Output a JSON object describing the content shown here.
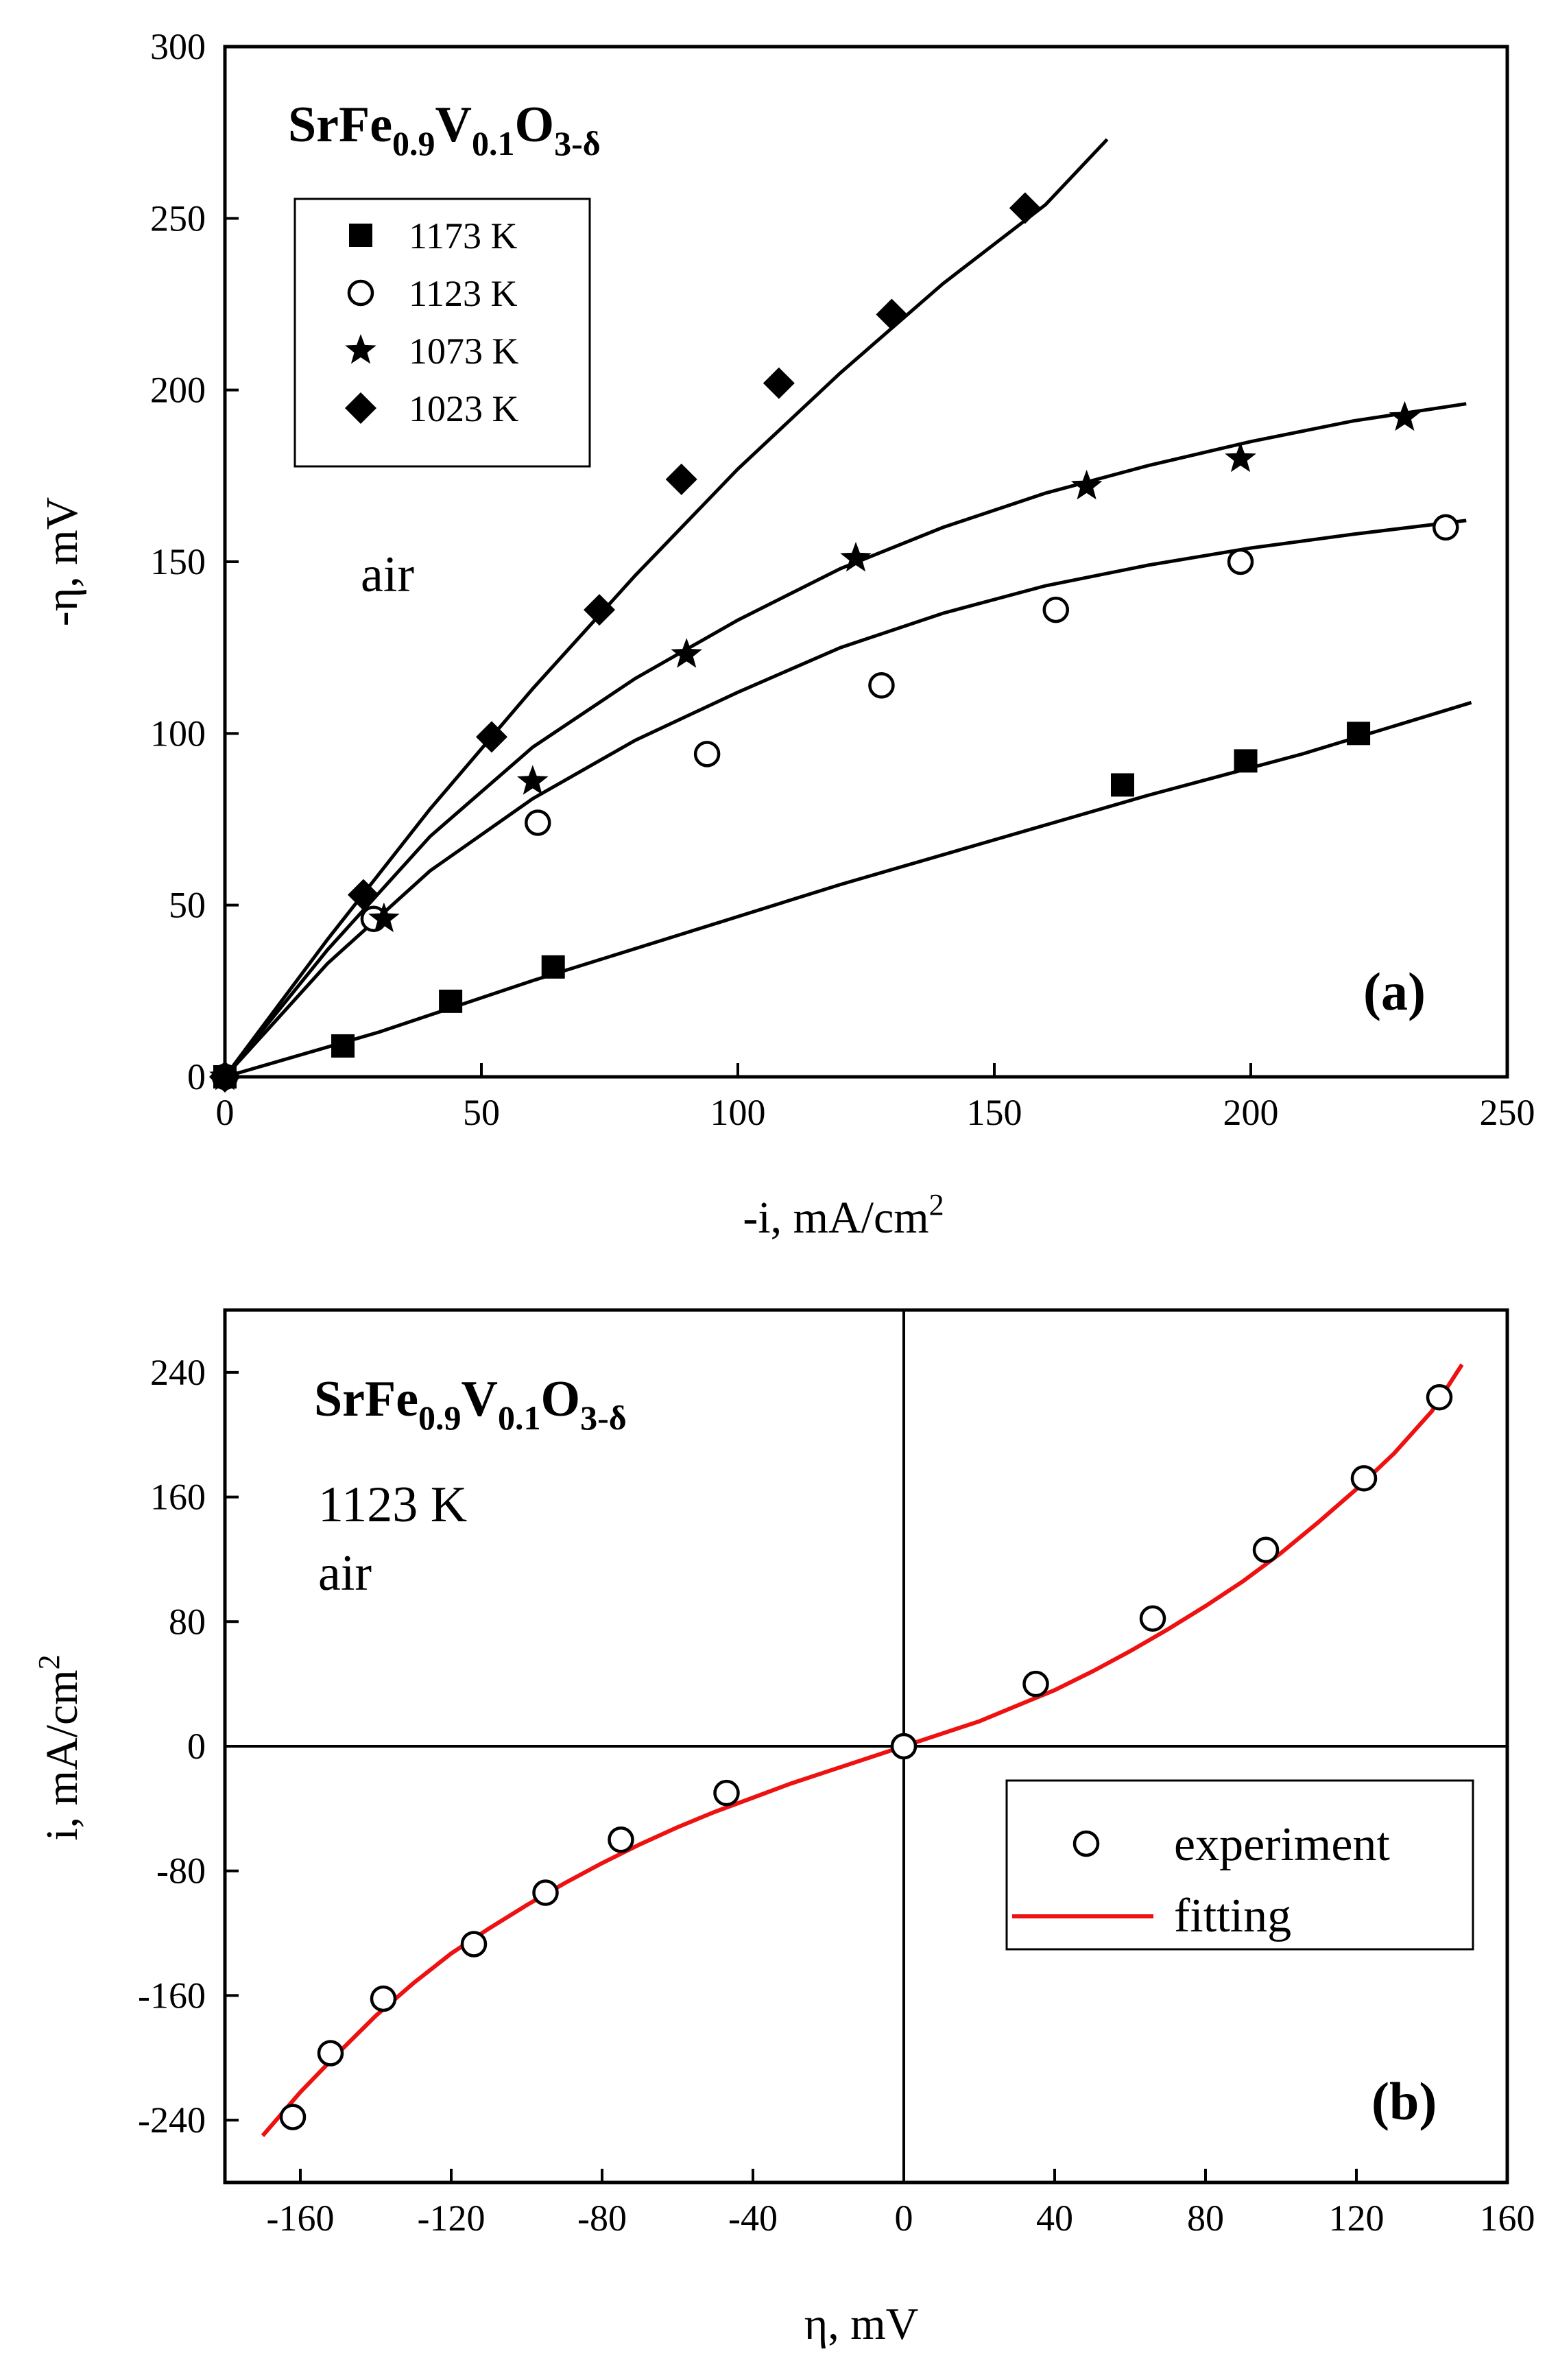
{
  "chart_data": [
    {
      "panel": "(a)",
      "type": "scatter",
      "xlabel": "-i, mA/cm",
      "xlabel_sup": "2",
      "ylabel": "-η, mV",
      "xlim": [
        0,
        250
      ],
      "ylim": [
        0,
        300
      ],
      "xticks": [
        0,
        50,
        100,
        150,
        200,
        250
      ],
      "yticks": [
        0,
        50,
        100,
        150,
        200,
        250,
        300
      ],
      "compound": {
        "base1": "SrFe",
        "sub1": "0.9",
        "base2": "V",
        "sub2": "0.1",
        "base3": "O",
        "sub3": "3-δ"
      },
      "annotation": "air",
      "legend": [
        "1173 K",
        "1123 K",
        "1073 K",
        "1023 K"
      ],
      "series": [
        {
          "name": "1173 K",
          "marker": "square",
          "points": [
            [
              0,
              0
            ],
            [
              23,
              9
            ],
            [
              44,
              22
            ],
            [
              64,
              32
            ],
            [
              175,
              85
            ],
            [
              199,
              92
            ],
            [
              221,
              100
            ]
          ],
          "fit": [
            [
              0,
              0
            ],
            [
              30,
              13
            ],
            [
              60,
              28
            ],
            [
              90,
              42
            ],
            [
              120,
              56
            ],
            [
              150,
              69
            ],
            [
              180,
              82
            ],
            [
              210,
              94
            ],
            [
              243,
              109
            ]
          ]
        },
        {
          "name": "1123 K",
          "marker": "circle",
          "points": [
            [
              0,
              0
            ],
            [
              29,
              46
            ],
            [
              61,
              74
            ],
            [
              94,
              94
            ],
            [
              128,
              114
            ],
            [
              162,
              136
            ],
            [
              198,
              150
            ],
            [
              238,
              160
            ]
          ],
          "fit": [
            [
              0,
              0
            ],
            [
              20,
              33
            ],
            [
              40,
              60
            ],
            [
              60,
              81
            ],
            [
              80,
              98
            ],
            [
              100,
              112
            ],
            [
              120,
              125
            ],
            [
              140,
              135
            ],
            [
              160,
              143
            ],
            [
              180,
              149
            ],
            [
              200,
              154
            ],
            [
              220,
              158
            ],
            [
              242,
              162
            ]
          ]
        },
        {
          "name": "1073 K",
          "marker": "star",
          "points": [
            [
              0,
              0
            ],
            [
              31,
              46
            ],
            [
              60,
              86
            ],
            [
              90,
              123
            ],
            [
              123,
              151
            ],
            [
              168,
              172
            ],
            [
              198,
              180
            ],
            [
              230,
              192
            ]
          ],
          "fit": [
            [
              0,
              0
            ],
            [
              20,
              37
            ],
            [
              40,
              70
            ],
            [
              60,
              96
            ],
            [
              80,
              116
            ],
            [
              100,
              133
            ],
            [
              120,
              148
            ],
            [
              140,
              160
            ],
            [
              160,
              170
            ],
            [
              180,
              178
            ],
            [
              200,
              185
            ],
            [
              220,
              191
            ],
            [
              242,
              196
            ]
          ]
        },
        {
          "name": "1023 K",
          "marker": "diamond",
          "points": [
            [
              0,
              0
            ],
            [
              27,
              53
            ],
            [
              52,
              99
            ],
            [
              73,
              136
            ],
            [
              89,
              174
            ],
            [
              108,
              202
            ],
            [
              130,
              222
            ],
            [
              156,
              253
            ]
          ],
          "fit": [
            [
              0,
              0
            ],
            [
              20,
              40
            ],
            [
              40,
              78
            ],
            [
              60,
              113
            ],
            [
              80,
              146
            ],
            [
              100,
              177
            ],
            [
              120,
              205
            ],
            [
              140,
              231
            ],
            [
              160,
              254
            ],
            [
              172,
              273
            ]
          ]
        }
      ]
    },
    {
      "panel": "(b)",
      "type": "scatter",
      "xlabel": "η, mV",
      "ylabel": "i, mA/cm",
      "ylabel_sup": "2",
      "xlim": [
        -180,
        160
      ],
      "ylim": [
        -280,
        280
      ],
      "xticks": [
        -160,
        -120,
        -80,
        -40,
        0,
        40,
        80,
        120,
        160
      ],
      "yticks": [
        -240,
        -160,
        -80,
        0,
        80,
        160,
        240
      ],
      "compound": {
        "base1": "SrFe",
        "sub1": "0.9",
        "base2": "V",
        "sub2": "0.1",
        "base3": "O",
        "sub3": "3-δ"
      },
      "annotation_lines": [
        "1123 K",
        "air"
      ],
      "legend": [
        "experiment",
        "fitting"
      ],
      "series": [
        {
          "name": "experiment",
          "marker": "circle",
          "points": [
            [
              -162,
              -238
            ],
            [
              -152,
              -197
            ],
            [
              -138,
              -162
            ],
            [
              -114,
              -127
            ],
            [
              -95,
              -94
            ],
            [
              -75,
              -60
            ],
            [
              -47,
              -30
            ],
            [
              0,
              0
            ],
            [
              35,
              40
            ],
            [
              66,
              82
            ],
            [
              96,
              126
            ],
            [
              122,
              172
            ],
            [
              142,
              224
            ]
          ]
        },
        {
          "name": "fitting",
          "color": "#ee1111",
          "line": [
            [
              -170,
              -250
            ],
            [
              -160,
              -222
            ],
            [
              -150,
              -197
            ],
            [
              -140,
              -173
            ],
            [
              -130,
              -152
            ],
            [
              -120,
              -133
            ],
            [
              -110,
              -117
            ],
            [
              -100,
              -102
            ],
            [
              -90,
              -88
            ],
            [
              -80,
              -75
            ],
            [
              -70,
              -63
            ],
            [
              -60,
              -52
            ],
            [
              -50,
              -42
            ],
            [
              -40,
              -33
            ],
            [
              -30,
              -24
            ],
            [
              -20,
              -16
            ],
            [
              -10,
              -8
            ],
            [
              0,
              0
            ],
            [
              10,
              8
            ],
            [
              20,
              16
            ],
            [
              30,
              26
            ],
            [
              40,
              36
            ],
            [
              50,
              48
            ],
            [
              60,
              61
            ],
            [
              70,
              75
            ],
            [
              80,
              90
            ],
            [
              90,
              106
            ],
            [
              100,
              124
            ],
            [
              110,
              144
            ],
            [
              120,
              165
            ],
            [
              130,
              188
            ],
            [
              140,
              215
            ],
            [
              148,
              245
            ]
          ]
        }
      ]
    }
  ]
}
